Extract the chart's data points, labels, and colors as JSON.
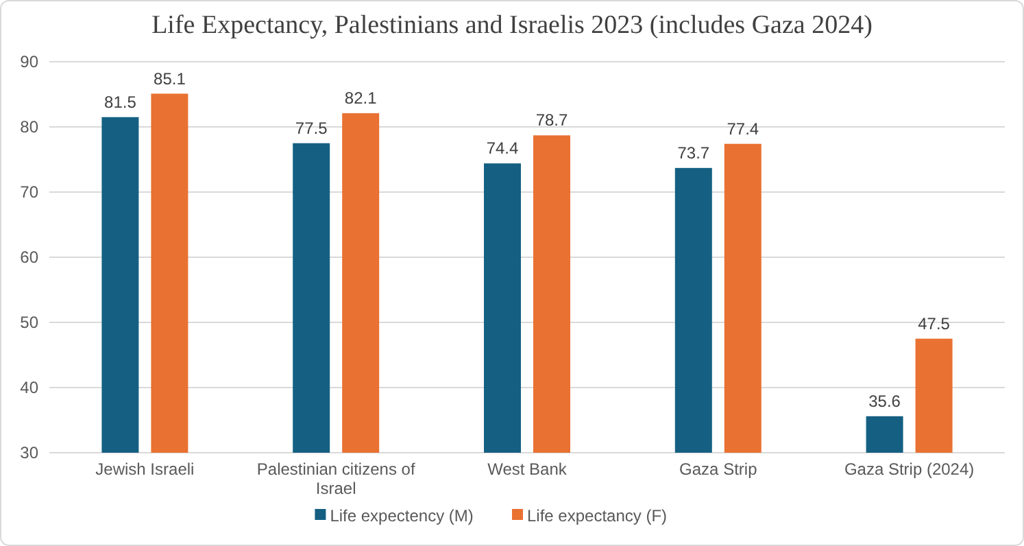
{
  "chart_data": {
    "type": "bar",
    "title": "Life Expectancy, Palestinians and Israelis 2023 (includes Gaza 2024)",
    "categories": [
      "Jewish Israeli",
      "Palestinian citizens of Israel",
      "West Bank",
      "Gaza Strip",
      "Gaza Strip (2024)"
    ],
    "series": [
      {
        "name": "Life expectency (M)",
        "color": "#156082",
        "values": [
          81.5,
          77.5,
          74.4,
          73.7,
          35.6
        ]
      },
      {
        "name": "Life expectancy (F)",
        "color": "#e97132",
        "values": [
          85.1,
          82.1,
          78.7,
          77.4,
          47.5
        ]
      }
    ],
    "ylim": [
      30,
      90
    ],
    "yticks": [
      30,
      40,
      50,
      60,
      70,
      80,
      90
    ],
    "grid": "y",
    "legend": "bottom",
    "data_labels": true
  }
}
